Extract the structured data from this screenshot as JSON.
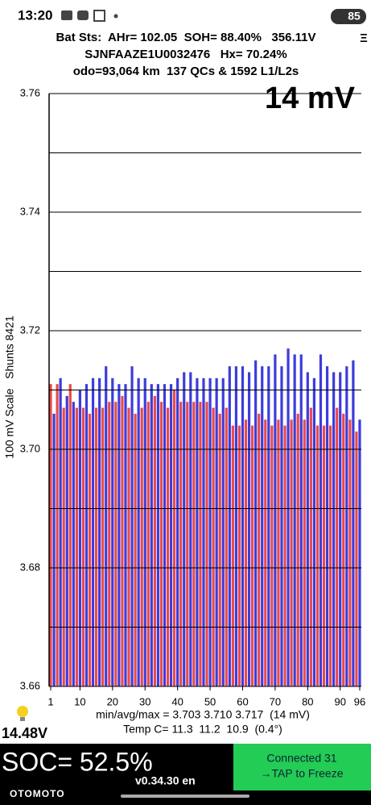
{
  "status_bar": {
    "time": "13:20",
    "battery": "85"
  },
  "header": {
    "line1": "Bat Sts:  AHr= 102.05  SOH= 88.40%   356.11V",
    "line2": "SJNFAAZE1U0032476   Hx= 70.24%",
    "line3": "odo=93,064 km  137 QCs & 1592 L1/L2s",
    "menu": "Ξ"
  },
  "chart_data": {
    "type": "bar",
    "annotation": "14 mV",
    "ylabel": "100 mV Scale   Shunts 8421",
    "values": [
      3.711,
      3.706,
      3.711,
      3.712,
      3.707,
      3.709,
      3.711,
      3.708,
      3.707,
      3.71,
      3.707,
      3.711,
      3.706,
      3.712,
      3.707,
      3.712,
      3.707,
      3.714,
      3.708,
      3.712,
      3.708,
      3.711,
      3.709,
      3.711,
      3.707,
      3.714,
      3.706,
      3.712,
      3.707,
      3.712,
      3.708,
      3.711,
      3.709,
      3.711,
      3.708,
      3.711,
      3.707,
      3.711,
      3.71,
      3.712,
      3.708,
      3.713,
      3.708,
      3.713,
      3.708,
      3.712,
      3.708,
      3.712,
      3.708,
      3.712,
      3.707,
      3.712,
      3.706,
      3.712,
      3.707,
      3.714,
      3.704,
      3.714,
      3.704,
      3.714,
      3.705,
      3.713,
      3.704,
      3.715,
      3.706,
      3.714,
      3.705,
      3.714,
      3.704,
      3.716,
      3.705,
      3.714,
      3.704,
      3.717,
      3.705,
      3.716,
      3.706,
      3.716,
      3.705,
      3.713,
      3.707,
      3.712,
      3.704,
      3.716,
      3.704,
      3.714,
      3.704,
      3.713,
      3.707,
      3.713,
      3.706,
      3.714,
      3.705,
      3.715,
      3.703,
      3.705
    ],
    "bar_colors": [
      "#e84a4a",
      "#3c3cdc"
    ],
    "xlim": [
      0.5,
      96.5
    ],
    "xticks": [
      1,
      10,
      20,
      30,
      40,
      50,
      60,
      70,
      80,
      90,
      96
    ],
    "ylim": [
      3.66,
      3.76
    ],
    "yticks": [
      3.66,
      3.68,
      {
        "value": 3.7,
        "label": "3.70"
      },
      3.72,
      3.74,
      3.76
    ],
    "grid_lines": [
      3.67,
      3.69,
      3.71,
      3.73,
      3.75
    ],
    "summary": "min/avg/max = 3.703 3.710 3.717  (14 mV)",
    "temperature": "Temp C= 11.3  11.2  10.9  (0.4°)"
  },
  "footer": {
    "pack_voltage": "14.48V",
    "soc": "SOC= 52.5%",
    "version": "v0.34.30 en",
    "button_line1": "Connected 31",
    "button_line2": "→TAP to Freeze",
    "watermark": "OTOMOTO"
  }
}
